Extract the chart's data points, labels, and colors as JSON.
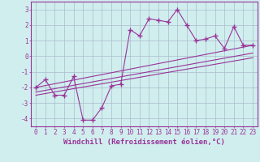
{
  "x_data": [
    0,
    1,
    2,
    3,
    4,
    5,
    6,
    7,
    8,
    9,
    10,
    11,
    12,
    13,
    14,
    15,
    16,
    17,
    18,
    19,
    20,
    21,
    22,
    23
  ],
  "y_data": [
    -2.0,
    -1.5,
    -2.5,
    -2.5,
    -1.3,
    -4.1,
    -4.1,
    -3.3,
    -1.9,
    -1.8,
    1.7,
    1.3,
    2.4,
    2.3,
    2.2,
    3.0,
    2.0,
    1.0,
    1.1,
    1.3,
    0.5,
    1.9,
    0.7,
    0.7
  ],
  "line1_x": [
    0,
    23
  ],
  "line1_y": [
    -2.0,
    0.7
  ],
  "line2_x": [
    0,
    23
  ],
  "line2_y": [
    -2.3,
    0.2
  ],
  "line3_x": [
    0,
    23
  ],
  "line3_y": [
    -2.5,
    -0.1
  ],
  "xlim": [
    -0.5,
    23.5
  ],
  "ylim": [
    -4.5,
    3.5
  ],
  "xticks": [
    0,
    1,
    2,
    3,
    4,
    5,
    6,
    7,
    8,
    9,
    10,
    11,
    12,
    13,
    14,
    15,
    16,
    17,
    18,
    19,
    20,
    21,
    22,
    23
  ],
  "yticks": [
    -4,
    -3,
    -2,
    -1,
    0,
    1,
    2,
    3
  ],
  "xlabel": "Windchill (Refroidissement éolien,°C)",
  "line_color": "#993399",
  "bg_color": "#d0eeee",
  "grid_color": "#aabbcc",
  "axis_color": "#993399",
  "tick_color": "#993399",
  "marker": "+",
  "markersize": 4,
  "linewidth": 0.8,
  "xlabel_fontsize": 6.5,
  "tick_fontsize": 5.5
}
